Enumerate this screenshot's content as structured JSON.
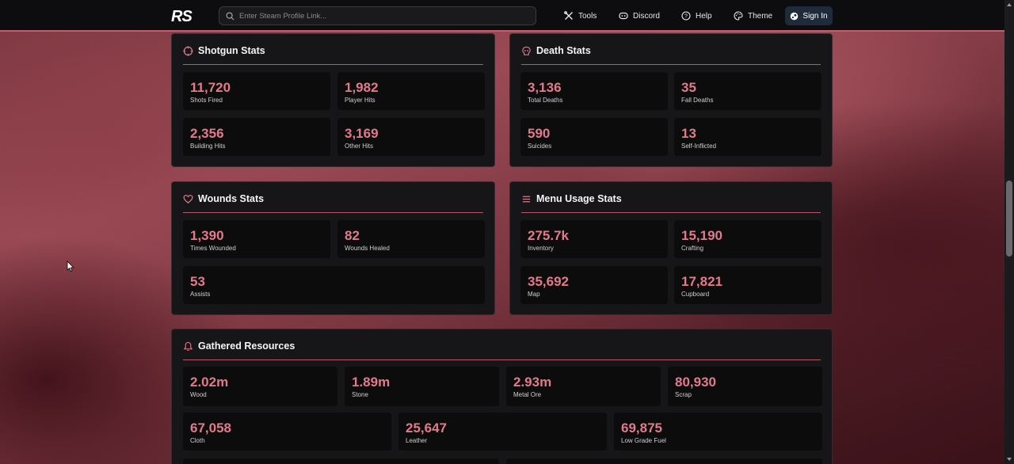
{
  "header": {
    "logo": "RS",
    "search_placeholder": "Enter Steam Profile Link...",
    "nav": {
      "tools": "Tools",
      "discord": "Discord",
      "help": "Help",
      "theme": "Theme"
    },
    "sign_in": "Sign In"
  },
  "shotgun": {
    "title": "Shotgun Stats",
    "stats": [
      {
        "value": "11,720",
        "label": "Shots Fired"
      },
      {
        "value": "1,982",
        "label": "Player Hits"
      },
      {
        "value": "2,356",
        "label": "Building Hits"
      },
      {
        "value": "3,169",
        "label": "Other Hits"
      }
    ]
  },
  "death": {
    "title": "Death Stats",
    "stats": [
      {
        "value": "3,136",
        "label": "Total Deaths"
      },
      {
        "value": "35",
        "label": "Fall Deaths"
      },
      {
        "value": "590",
        "label": "Suicides"
      },
      {
        "value": "13",
        "label": "Self-Inflicted"
      }
    ]
  },
  "wounds": {
    "title": "Wounds Stats",
    "stats": [
      {
        "value": "1,390",
        "label": "Times Wounded"
      },
      {
        "value": "82",
        "label": "Wounds Healed"
      },
      {
        "value": "53",
        "label": "Assists"
      }
    ]
  },
  "menu": {
    "title": "Menu Usage Stats",
    "stats": [
      {
        "value": "275.7k",
        "label": "Inventory"
      },
      {
        "value": "15,190",
        "label": "Crafting"
      },
      {
        "value": "35,692",
        "label": "Map"
      },
      {
        "value": "17,821",
        "label": "Cupboard"
      }
    ]
  },
  "resources": {
    "title": "Gathered Resources",
    "stats": [
      {
        "value": "2.02m",
        "label": "Wood"
      },
      {
        "value": "1.89m",
        "label": "Stone"
      },
      {
        "value": "2.93m",
        "label": "Metal Ore"
      },
      {
        "value": "80,930",
        "label": "Scrap"
      },
      {
        "value": "67,058",
        "label": "Cloth"
      },
      {
        "value": "25,647",
        "label": "Leather"
      },
      {
        "value": "69,875",
        "label": "Low Grade Fuel"
      }
    ]
  },
  "colors": {
    "accent": "#e27a8c",
    "rule": "#b8566a",
    "header_border": "#c25e6d"
  }
}
